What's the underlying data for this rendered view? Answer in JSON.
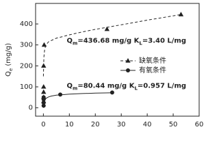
{
  "chart_data": {
    "type": "scatter",
    "y_label": [
      "Q",
      "e",
      " (mg/g)"
    ],
    "xlim": [
      -3,
      60
    ],
    "ylim": [
      -40,
      498
    ],
    "xticks": [
      0,
      10,
      20,
      30,
      40,
      50,
      60
    ],
    "yticks": [
      0,
      100,
      200,
      300,
      400
    ],
    "legend": "center-right",
    "series": [
      {
        "name": "缺氧条件",
        "color": "#222",
        "marker": "triangle",
        "dash": true,
        "x": [
          0.1,
          0.1,
          0.1,
          0.1,
          0.1,
          0.3,
          24.5,
          53
        ],
        "values": [
          30,
          50,
          75,
          100,
          200,
          300,
          375,
          445
        ],
        "fit_x": [
          0,
          0.2,
          0.5,
          1,
          2,
          5,
          10,
          15,
          20,
          30,
          40,
          53
        ],
        "fit_values": [
          150,
          240,
          280,
          300,
          315,
          332,
          348,
          362,
          374,
          396,
          418,
          445
        ]
      },
      {
        "name": "有氧条件",
        "color": "#222",
        "marker": "circle",
        "dash": false,
        "x": [
          0.1,
          0.1,
          0.1,
          0.1,
          6.5,
          26.5
        ],
        "values": [
          10,
          25,
          40,
          50,
          63,
          73
        ],
        "fit_x": [
          0,
          0.3,
          1,
          2,
          3,
          5,
          7,
          10,
          15,
          20,
          27
        ],
        "fit_values": [
          0,
          30,
          45,
          52,
          56,
          60,
          62,
          65,
          68,
          70,
          72
        ]
      }
    ],
    "annotations": [
      {
        "parts": [
          "Q",
          "m",
          "=436.68 mg/g K",
          "L",
          "=3.40 L/mg"
        ],
        "x": 9,
        "y": 320
      },
      {
        "parts": [
          "Q",
          "m",
          "=80.44 mg/g K",
          "L",
          "=0.957 L/mg"
        ],
        "x": 9,
        "y": 105
      }
    ]
  }
}
